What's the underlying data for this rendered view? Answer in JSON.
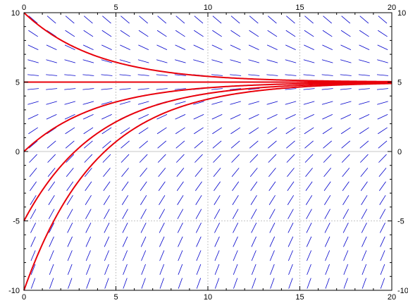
{
  "chart_data": {
    "type": "line",
    "title": "",
    "xlabel": "",
    "ylabel": "",
    "xlim": [
      0,
      20
    ],
    "ylim": [
      -10,
      10
    ],
    "x_ticks": [
      0,
      5,
      10,
      15,
      20
    ],
    "y_ticks": [
      -10,
      -5,
      0,
      5,
      10
    ],
    "x_tick_labels": [
      "0",
      "5",
      "10",
      "15",
      "20"
    ],
    "y_tick_labels": [
      "-10",
      "-5",
      "0",
      "5",
      "10"
    ],
    "grid": true,
    "grid_color": "#b4b4b4",
    "slope_field": {
      "equation": "dy/dx = (5 - y)/4",
      "x_start": 0.5,
      "x_step": 1,
      "x_count": 20,
      "y_start": -9.5,
      "y_step": 1,
      "y_count": 20,
      "color": "#0000cc"
    },
    "series": [
      {
        "equilibrium": 5,
        "y0": 10,
        "rate": 0.25,
        "color": "#e8000b"
      },
      {
        "equilibrium": 5,
        "y0": 5,
        "rate": 0.25,
        "color": "#e8000b"
      },
      {
        "equilibrium": 5,
        "y0": 0,
        "rate": 0.25,
        "color": "#e8000b"
      },
      {
        "equilibrium": 5,
        "y0": -5,
        "rate": 0.25,
        "color": "#e8000b"
      },
      {
        "equilibrium": 5,
        "y0": -10,
        "rate": 0.25,
        "color": "#e8000b"
      }
    ]
  }
}
